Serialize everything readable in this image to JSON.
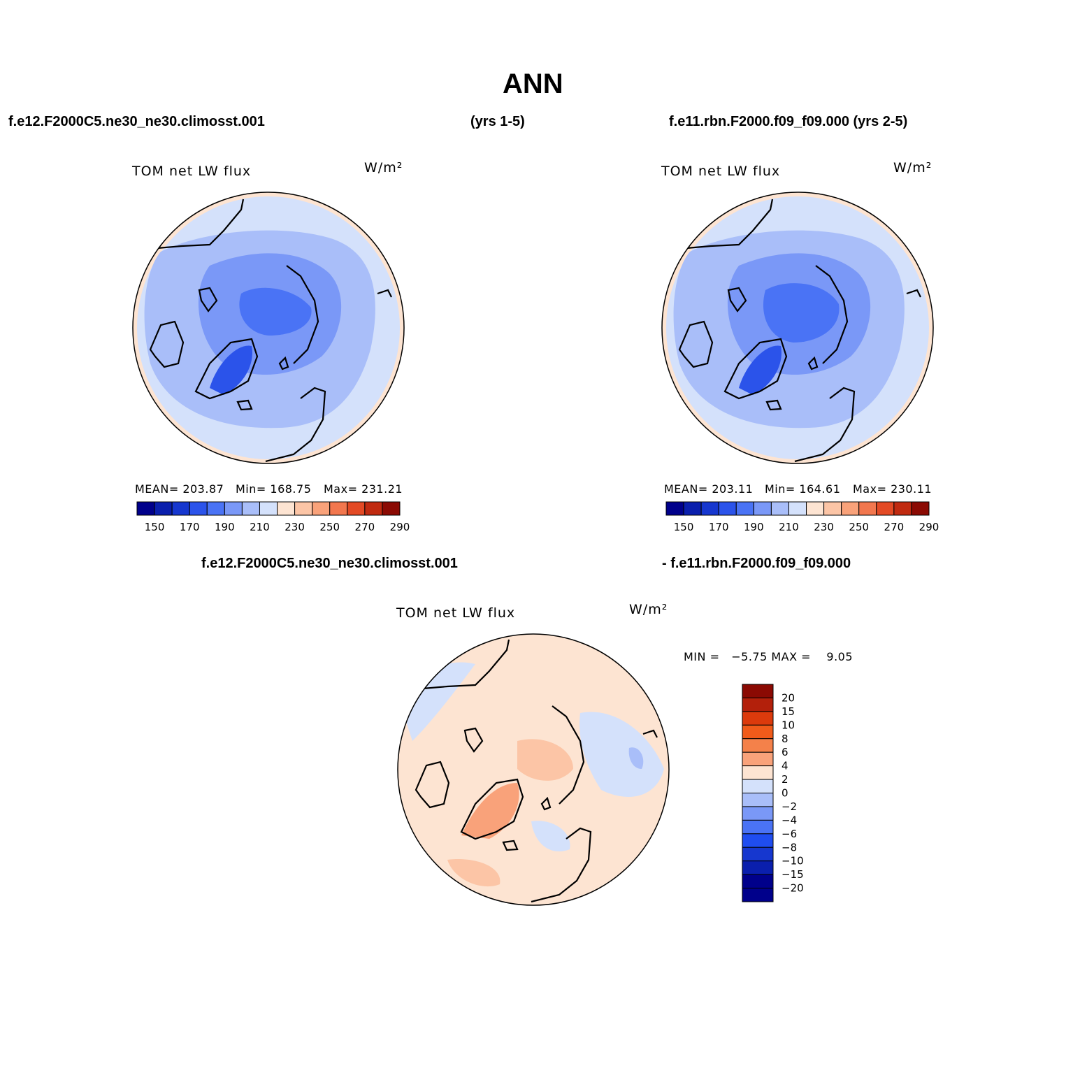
{
  "title": "ANN",
  "panels": {
    "left": {
      "case_label": "f.e12.F2000C5.ne30_ne30.climosst.001",
      "years": "(yrs 1-5)",
      "variable": "TOM net LW flux",
      "units": "W/m²",
      "mean_label": "MEAN= 203.87",
      "min_label": "Min= 168.75",
      "max_label": "Max= 231.21"
    },
    "right": {
      "case_label": "f.e11.rbn.F2000.f09_f09.000 (yrs 2-5)",
      "variable": "TOM net LW flux",
      "units": "W/m²",
      "mean_label": "MEAN= 203.11",
      "min_label": "Min= 164.61",
      "max_label": "Max= 230.11"
    },
    "diff": {
      "case_a": "f.e12.F2000C5.ne30_ne30.climosst.001",
      "case_b": "- f.e11.rbn.F2000.f09_f09.000",
      "variable": "TOM net LW flux",
      "units": "W/m²",
      "minmax_label": "MIN =   −5.75 MAX =    9.05"
    }
  },
  "colorbar_abs": {
    "colors": [
      "#00008b",
      "#0a1fad",
      "#1637cf",
      "#2b53ea",
      "#4a73f5",
      "#7a98f7",
      "#a9bef9",
      "#d4e1fb",
      "#fde4d2",
      "#fcc5a6",
      "#f9a27a",
      "#f2774e",
      "#e34a25",
      "#c02a10",
      "#8b0a03"
    ],
    "tick_labels": [
      "150",
      "170",
      "190",
      "210",
      "230",
      "250",
      "270",
      "290"
    ]
  },
  "colorbar_diff": {
    "colors": [
      "#8b0a03",
      "#b3200b",
      "#dc3a0c",
      "#f05b1a",
      "#f4814a",
      "#f9a27a",
      "#fde4d2",
      "#d4e1fb",
      "#a9bef9",
      "#7a98f7",
      "#4a73f5",
      "#1f4df0",
      "#1637cf",
      "#0a1fad",
      "#00008b"
    ],
    "tick_labels": [
      "20",
      "15",
      "10",
      "8",
      "6",
      "4",
      "2",
      "0",
      "−2",
      "−4",
      "−6",
      "−8",
      "−10",
      "−15",
      "−20"
    ]
  }
}
